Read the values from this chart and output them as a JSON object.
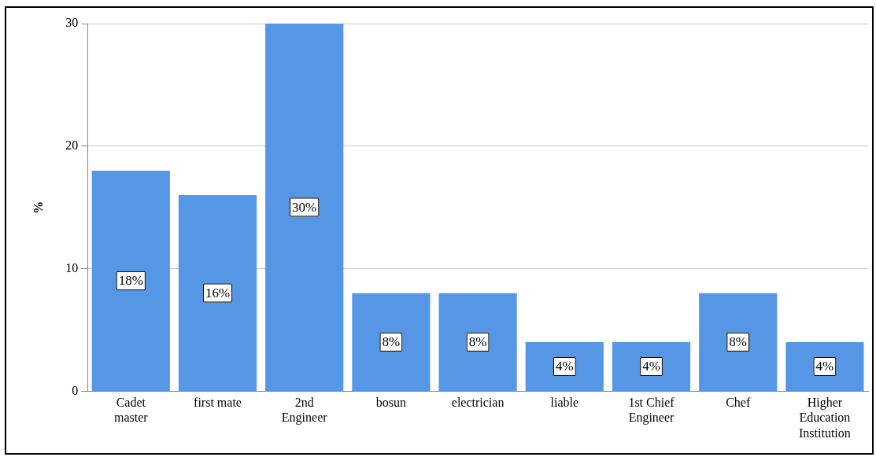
{
  "chart_data": {
    "type": "bar",
    "ylabel": "%",
    "categories": [
      "Cadet master",
      "first mate",
      "2nd Engineer",
      "bosun",
      "electrician",
      "liable",
      "1st Chief Engineer",
      "Chef",
      "Higher Education Institution"
    ],
    "values": [
      18,
      16,
      30,
      8,
      8,
      4,
      4,
      8,
      4
    ],
    "value_labels": [
      "18%",
      "16%",
      "30%",
      "8%",
      "8%",
      "4%",
      "4%",
      "8%",
      "4%"
    ],
    "color": "#5596e5",
    "ylim": [
      0,
      30
    ],
    "yticks": [
      0,
      10,
      20,
      30
    ],
    "grid": "y",
    "legend": false
  }
}
